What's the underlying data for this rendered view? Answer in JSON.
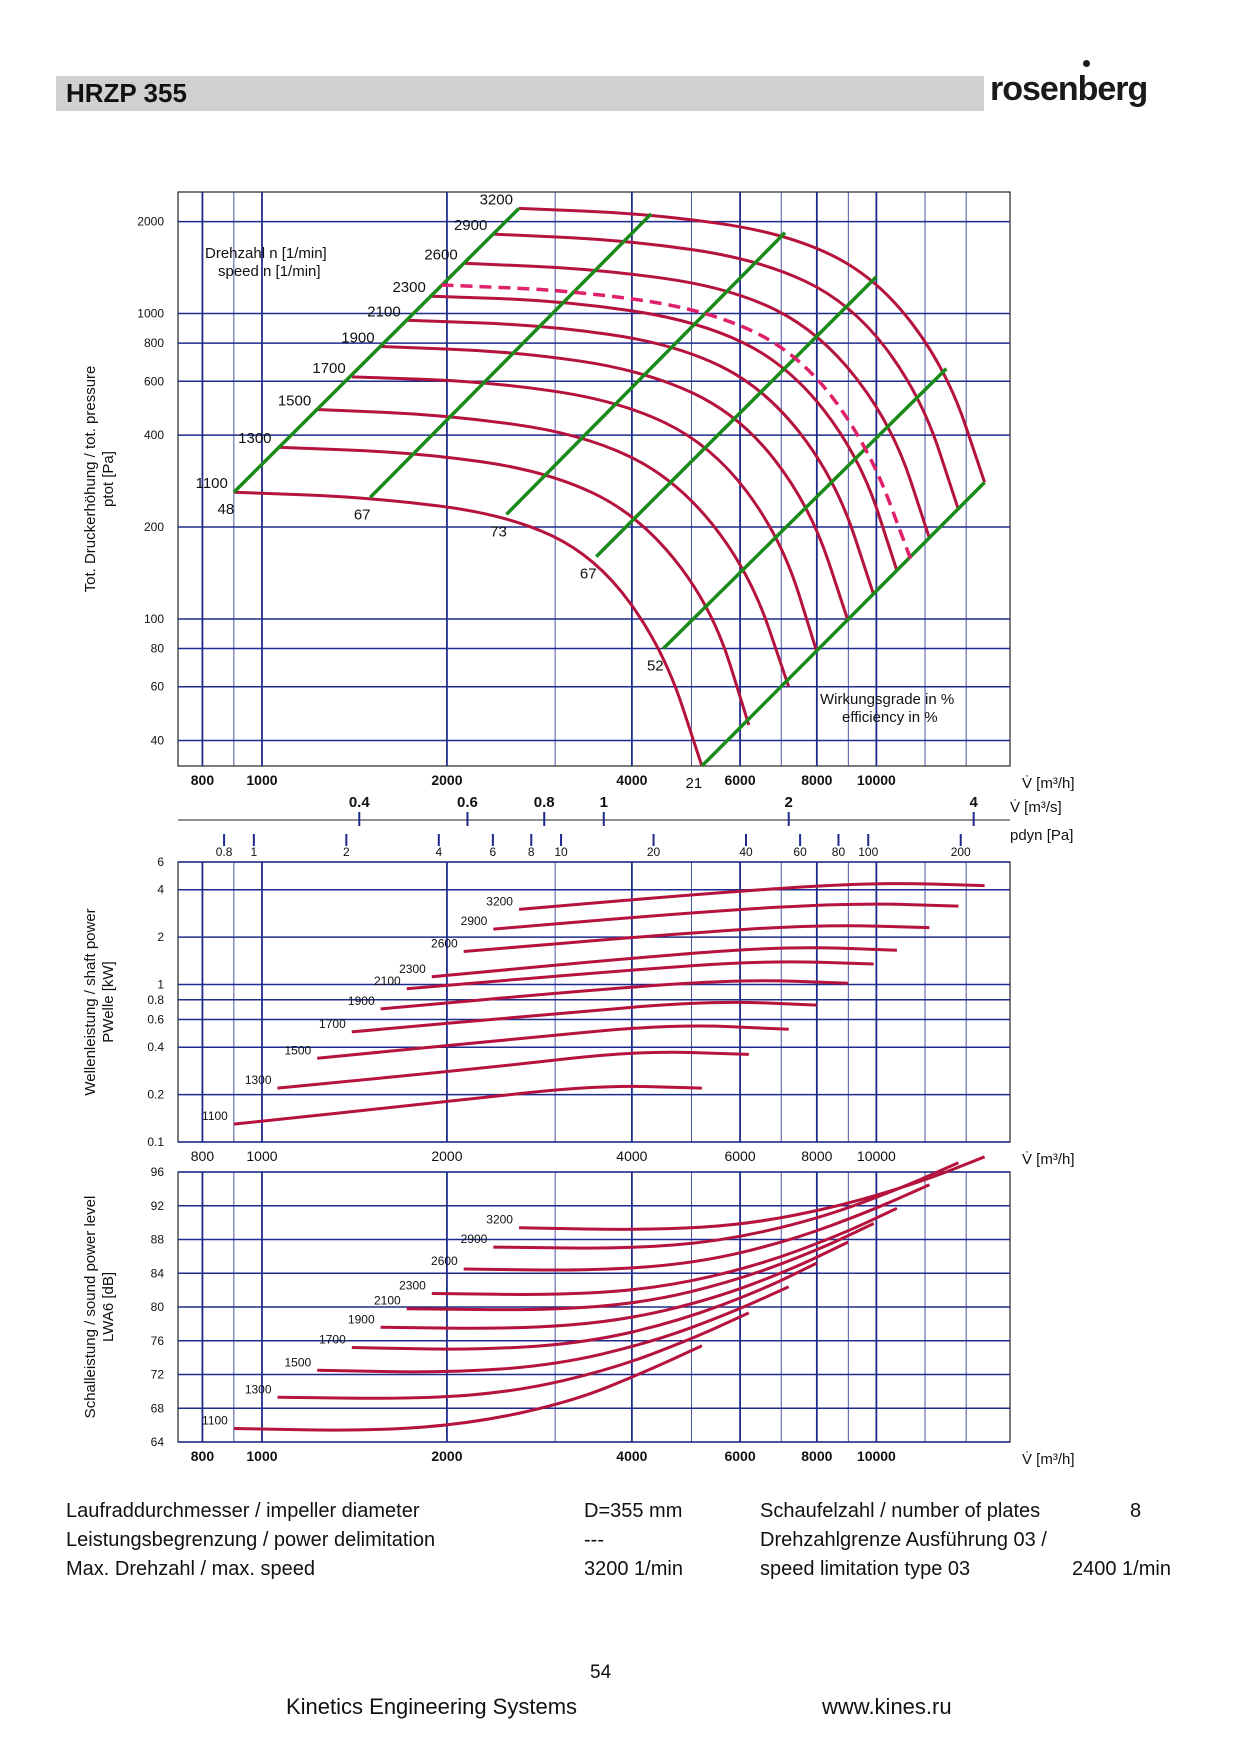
{
  "header": {
    "title": "HRZP 355",
    "brand": "rosenberg"
  },
  "colors": {
    "curve": "#b5133d",
    "efficiency_line": "#1a8a1a",
    "grid": "#1d2b8c",
    "limit": "#e0206a"
  },
  "chart_data": [
    {
      "type": "line",
      "title": "",
      "xlabel": "V̇ [m³/h]",
      "ylabel": "Tot. Druckerhöhung / tot. pressure",
      "ylabel_sub": "ptot [Pa]",
      "x_scale": "log",
      "y_scale": "log",
      "xlim": [
        730,
        16500
      ],
      "ylim": [
        33,
        2500
      ],
      "x_ticks": [
        "800",
        "1000",
        "2000",
        "4000",
        "6000",
        "8000",
        "10000"
      ],
      "x_tick_values": [
        800,
        1000,
        2000,
        4000,
        6000,
        8000,
        10000
      ],
      "y_ticks": [
        "40",
        "60",
        "80",
        "100",
        "200",
        "400",
        "600",
        "800",
        "1000",
        "2000"
      ],
      "y_tick_values": [
        40,
        60,
        80,
        100,
        200,
        400,
        600,
        800,
        1000,
        2000
      ],
      "secondary_axes": [
        {
          "label": "V̇ [m³/s]",
          "ticks": [
            "0.4",
            "0.6",
            "0.8",
            "1",
            "2",
            "4"
          ],
          "values": [
            0.4,
            0.6,
            0.8,
            1,
            2,
            4
          ]
        },
        {
          "label": "pdyn [Pa]",
          "ticks": [
            "0.8",
            "1",
            "2",
            "4",
            "6",
            "8",
            "10",
            "20",
            "40",
            "60",
            "80",
            "100",
            "200"
          ],
          "values": [
            0.8,
            1,
            2,
            4,
            6,
            8,
            10,
            20,
            40,
            60,
            80,
            100,
            200
          ]
        }
      ],
      "legend_title": "Drehzahl n [1/min] speed n [1/min]",
      "annotation": "Wirkungsgrade in % efficiency in %",
      "speeds": [
        "1100",
        "1300",
        "1500",
        "1700",
        "1900",
        "2100",
        "2300",
        "2600",
        "2900",
        "3200"
      ],
      "series": [
        {
          "name": "1100",
          "x": [
            900,
            1500,
            2500,
            3500,
            4500,
            5200
          ],
          "y": [
            260,
            250,
            220,
            160,
            80,
            33
          ]
        },
        {
          "name": "1300",
          "x": [
            1060,
            1800,
            2900,
            4100,
            5400,
            6200
          ],
          "y": [
            365,
            350,
            305,
            220,
            110,
            45
          ]
        },
        {
          "name": "1500",
          "x": [
            1230,
            2000,
            3300,
            4700,
            6200,
            7200
          ],
          "y": [
            485,
            465,
            405,
            290,
            145,
            60
          ]
        },
        {
          "name": "1700",
          "x": [
            1400,
            2300,
            3800,
            5400,
            7000,
            8000
          ],
          "y": [
            620,
            600,
            520,
            370,
            185,
            78
          ]
        },
        {
          "name": "1900",
          "x": [
            1560,
            2600,
            4200,
            6000,
            7800,
            9000
          ],
          "y": [
            780,
            750,
            650,
            465,
            235,
            98
          ]
        },
        {
          "name": "2100",
          "x": [
            1720,
            2900,
            4700,
            6600,
            8600,
            9900
          ],
          "y": [
            950,
            915,
            795,
            570,
            285,
            120
          ]
        },
        {
          "name": "2300",
          "x": [
            1890,
            3100,
            5100,
            7200,
            9400,
            10800
          ],
          "y": [
            1140,
            1100,
            950,
            680,
            340,
            144
          ]
        },
        {
          "name": "2600",
          "x": [
            2130,
            3500,
            5800,
            8100,
            10600,
            12200
          ],
          "y": [
            1460,
            1400,
            1215,
            870,
            435,
            184
          ]
        },
        {
          "name": "2900",
          "x": [
            2380,
            3900,
            6400,
            9100,
            11800,
            13600
          ],
          "y": [
            1820,
            1740,
            1510,
            1085,
            545,
            228
          ]
        },
        {
          "name": "3200",
          "x": [
            2620,
            4300,
            7100,
            10000,
            13000,
            15000
          ],
          "y": [
            2210,
            2120,
            1840,
            1320,
            660,
            280
          ]
        }
      ],
      "efficiency_lines": [
        {
          "label": "48",
          "x": [
            900,
            2620
          ],
          "y": [
            260,
            2210
          ]
        },
        {
          "label": "67",
          "x": [
            1500,
            4300
          ],
          "y": [
            250,
            2120
          ]
        },
        {
          "label": "73",
          "x": [
            2500,
            7100
          ],
          "y": [
            220,
            1840
          ]
        },
        {
          "label": "67",
          "x": [
            3500,
            10000
          ],
          "y": [
            160,
            1320
          ]
        },
        {
          "label": "52",
          "x": [
            4500,
            13000
          ],
          "y": [
            80,
            660
          ]
        },
        {
          "label": "21",
          "x": [
            5200,
            15000
          ],
          "y": [
            33,
            280
          ]
        }
      ],
      "speed_limit": {
        "name": "2400",
        "x": [
          1960,
          3200,
          5300,
          7500,
          9700,
          11400
        ],
        "y": [
          1240,
          1190,
          1030,
          740,
          370,
          155
        ]
      }
    },
    {
      "type": "line",
      "title": "",
      "xlabel": "V̇ [m³/h]",
      "ylabel": "Wellenleistung / shaft power",
      "ylabel_sub": "PWelle [kW]",
      "x_scale": "log",
      "y_scale": "log",
      "xlim": [
        730,
        16500
      ],
      "ylim": [
        0.1,
        6
      ],
      "x_ticks": [
        "800",
        "1000",
        "2000",
        "4000",
        "6000",
        "8000",
        "10000"
      ],
      "x_tick_values": [
        800,
        1000,
        2000,
        4000,
        6000,
        8000,
        10000
      ],
      "y_ticks": [
        "0.1",
        "0.2",
        "0.4",
        "0.6",
        "0.8",
        "1",
        "2",
        "4",
        "6"
      ],
      "y_tick_values": [
        0.1,
        0.2,
        0.4,
        0.6,
        0.8,
        1,
        2,
        4,
        6
      ],
      "series": [
        {
          "name": "1100",
          "x": [
            900,
            2000,
            3500,
            5200
          ],
          "y": [
            0.13,
            0.18,
            0.23,
            0.22
          ]
        },
        {
          "name": "1300",
          "x": [
            1060,
            2400,
            4100,
            6200
          ],
          "y": [
            0.22,
            0.3,
            0.38,
            0.36
          ]
        },
        {
          "name": "1500",
          "x": [
            1230,
            2700,
            4700,
            7200
          ],
          "y": [
            0.34,
            0.46,
            0.56,
            0.52
          ]
        },
        {
          "name": "1700",
          "x": [
            1400,
            3100,
            5400,
            8000
          ],
          "y": [
            0.5,
            0.66,
            0.79,
            0.74
          ]
        },
        {
          "name": "1900",
          "x": [
            1560,
            3400,
            6000,
            9000
          ],
          "y": [
            0.7,
            0.92,
            1.08,
            1.02
          ]
        },
        {
          "name": "2100",
          "x": [
            1720,
            3800,
            6600,
            9900
          ],
          "y": [
            0.94,
            1.22,
            1.42,
            1.35
          ]
        },
        {
          "name": "2300",
          "x": [
            1890,
            4200,
            7200,
            10800
          ],
          "y": [
            1.12,
            1.5,
            1.75,
            1.65
          ]
        },
        {
          "name": "2600",
          "x": [
            2130,
            4700,
            8100,
            12200
          ],
          "y": [
            1.62,
            2.1,
            2.4,
            2.3
          ]
        },
        {
          "name": "2900",
          "x": [
            2380,
            5200,
            9100,
            13600
          ],
          "y": [
            2.25,
            2.9,
            3.3,
            3.15
          ]
        },
        {
          "name": "3200",
          "x": [
            2620,
            5800,
            10000,
            15000
          ],
          "y": [
            3.0,
            3.9,
            4.45,
            4.25
          ]
        }
      ]
    },
    {
      "type": "line",
      "title": "",
      "xlabel": "V̇ [m³/h]",
      "ylabel": "Schalleistung / sound power level",
      "ylabel_sub": "LWA6 [dB]",
      "x_scale": "log",
      "y_scale": "linear",
      "xlim": [
        730,
        16500
      ],
      "ylim": [
        64,
        96
      ],
      "x_ticks": [
        "800",
        "1000",
        "2000",
        "4000",
        "6000",
        "8000",
        "10000"
      ],
      "x_tick_values": [
        800,
        1000,
        2000,
        4000,
        6000,
        8000,
        10000
      ],
      "y_ticks": [
        "64",
        "68",
        "72",
        "76",
        "80",
        "84",
        "88",
        "92",
        "96"
      ],
      "y_tick_values": [
        64,
        68,
        72,
        76,
        80,
        84,
        88,
        92,
        96
      ],
      "series": [
        {
          "name": "1100",
          "x": [
            900,
            1500,
            2200,
            3200,
            4200,
            5200
          ],
          "y": [
            65.6,
            65.3,
            66.2,
            68.8,
            72.3,
            75.4
          ]
        },
        {
          "name": "1300",
          "x": [
            1060,
            1800,
            2600,
            3700,
            5000,
            6200
          ],
          "y": [
            69.3,
            69.1,
            70.0,
            72.6,
            76.2,
            79.3
          ]
        },
        {
          "name": "1500",
          "x": [
            1230,
            2000,
            3000,
            4300,
            5800,
            7200
          ],
          "y": [
            72.5,
            72.2,
            73.1,
            75.8,
            79.3,
            82.4
          ]
        },
        {
          "name": "1700",
          "x": [
            1400,
            2300,
            3400,
            4800,
            6500,
            8000
          ],
          "y": [
            75.2,
            74.9,
            75.8,
            78.4,
            82.0,
            85.2
          ]
        },
        {
          "name": "1900",
          "x": [
            1560,
            2600,
            3800,
            5400,
            7300,
            9000
          ],
          "y": [
            77.6,
            77.4,
            78.3,
            80.9,
            84.5,
            87.7
          ]
        },
        {
          "name": "2100",
          "x": [
            1720,
            2900,
            4200,
            5900,
            8000,
            9900
          ],
          "y": [
            79.8,
            79.6,
            80.5,
            83.1,
            86.7,
            89.9
          ]
        },
        {
          "name": "2300",
          "x": [
            1890,
            3100,
            4500,
            6400,
            8700,
            10800
          ],
          "y": [
            81.6,
            81.4,
            82.3,
            84.9,
            88.5,
            91.7
          ]
        },
        {
          "name": "2600",
          "x": [
            2130,
            3500,
            5100,
            7200,
            9800,
            12200
          ],
          "y": [
            84.5,
            84.3,
            85.2,
            87.8,
            91.4,
            94.5
          ]
        },
        {
          "name": "2900",
          "x": [
            2380,
            3900,
            5600,
            8000,
            10900,
            13600
          ],
          "y": [
            87.1,
            86.9,
            87.8,
            90.4,
            94.0,
            97.1
          ]
        },
        {
          "name": "3200",
          "x": [
            2620,
            4300,
            6200,
            8800,
            12000,
            15000
          ],
          "y": [
            89.4,
            89.1,
            89.8,
            92.0,
            95.0,
            97.8
          ]
        }
      ]
    }
  ],
  "specs": {
    "left": [
      {
        "label": "Laufraddurchmesser / impeller diameter",
        "value": "D=355 mm"
      },
      {
        "label": "Leistungsbegrenzung / power delimitation",
        "value": "---"
      },
      {
        "label": "Max. Drehzahl / max. speed",
        "value": "3200 1/min"
      }
    ],
    "right": [
      {
        "label": "Schaufelzahl / number of plates",
        "value": "8"
      },
      {
        "label": "Drehzahlgrenze Ausführung 03 /",
        "value": ""
      },
      {
        "label": "speed limitation type 03",
        "value": "2400 1/min"
      }
    ]
  },
  "footer": {
    "page": "54",
    "company": "Kinetics Engineering Systems",
    "url": "www.kines.ru"
  }
}
